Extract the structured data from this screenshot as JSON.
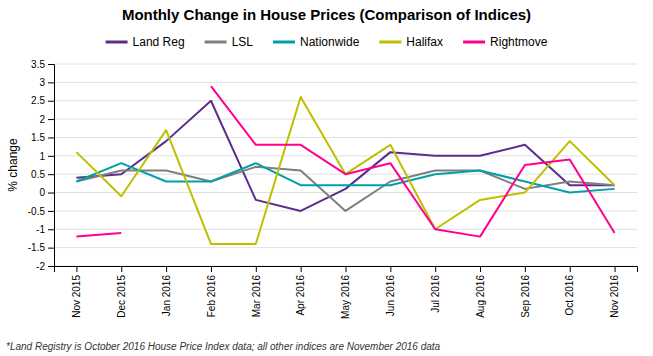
{
  "chart_data": {
    "type": "line",
    "title": "Monthly Change in House Prices (Comparison of Indices)",
    "ylabel": "% change",
    "footnote": "*Land Registry is October 2016 House Price Index data; all other indices are November 2016 data",
    "categories": [
      "Nov 2015",
      "Dec 2015",
      "Jan 2016",
      "Feb 2016",
      "Mar 2016",
      "Apr 2016",
      "May 2016",
      "Jun 2016",
      "Jul 2016",
      "Aug 2016",
      "Sep 2016",
      "Oct 2016",
      "Nov 2016"
    ],
    "series": [
      {
        "name": "Land Reg",
        "color": "#5B2C8D",
        "values": [
          0.4,
          0.5,
          1.4,
          2.5,
          -0.2,
          -0.5,
          0.1,
          1.1,
          1.0,
          1.0,
          1.3,
          0.2,
          0.2
        ]
      },
      {
        "name": "LSL",
        "color": "#7F7F7F",
        "values": [
          0.3,
          0.6,
          0.6,
          0.3,
          0.7,
          0.6,
          -0.5,
          0.3,
          0.6,
          0.6,
          0.1,
          0.3,
          0.2
        ]
      },
      {
        "name": "Nationwide",
        "color": "#00A0A8",
        "values": [
          0.3,
          0.8,
          0.3,
          0.3,
          0.8,
          0.2,
          0.2,
          0.2,
          0.5,
          0.6,
          0.3,
          0.0,
          0.1
        ]
      },
      {
        "name": "Halifax",
        "color": "#BFBF00",
        "values": [
          1.1,
          -0.1,
          1.7,
          -1.4,
          -1.4,
          2.6,
          0.5,
          1.3,
          -1.0,
          -0.2,
          0.0,
          1.4,
          0.2
        ]
      },
      {
        "name": "Rightmove",
        "color": "#FF0090",
        "values": [
          -1.2,
          -1.1,
          null,
          2.9,
          1.3,
          1.3,
          0.5,
          0.8,
          -1.0,
          -1.2,
          0.75,
          0.9,
          -1.1
        ]
      }
    ],
    "ylim": [
      -2,
      3.5
    ],
    "yticks": [
      -2,
      -1.5,
      -1,
      -0.5,
      0,
      0.5,
      1,
      1.5,
      2,
      2.5,
      3,
      3.5
    ],
    "grid": true,
    "legend": "top"
  }
}
